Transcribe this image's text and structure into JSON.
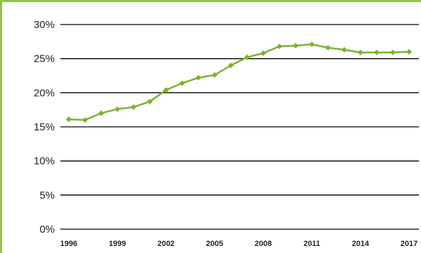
{
  "chart_data": {
    "type": "line",
    "x": [
      1996,
      1997,
      1998,
      1999,
      2000,
      2001,
      2002,
      2003,
      2004,
      2005,
      2006,
      2007,
      2008,
      2009,
      2010,
      2011,
      2012,
      2013,
      2014,
      2015,
      2016,
      2017
    ],
    "series": [
      {
        "values": [
          16.1,
          16.0,
          17.0,
          17.6,
          17.9,
          18.7,
          20.4,
          21.4,
          22.2,
          22.6,
          24.0,
          25.2,
          25.8,
          26.8,
          26.9,
          27.1,
          26.6,
          26.3,
          25.9,
          25.9,
          25.9,
          26.0
        ]
      }
    ],
    "x_tick_labels": [
      "1996",
      "1999",
      "2002",
      "2005",
      "2008",
      "2011",
      "2014",
      "2017"
    ],
    "y_ticks": [
      0,
      5,
      10,
      15,
      20,
      25,
      30
    ],
    "y_tick_labels": [
      "0%",
      "5%",
      "10%",
      "15%",
      "20%",
      "25%",
      "30%"
    ],
    "ylim": [
      0,
      30
    ],
    "xlim": [
      1996,
      2017
    ],
    "grid": "horizontal",
    "line_color": "#7ab32e",
    "frame_color": "#8dc63f"
  }
}
